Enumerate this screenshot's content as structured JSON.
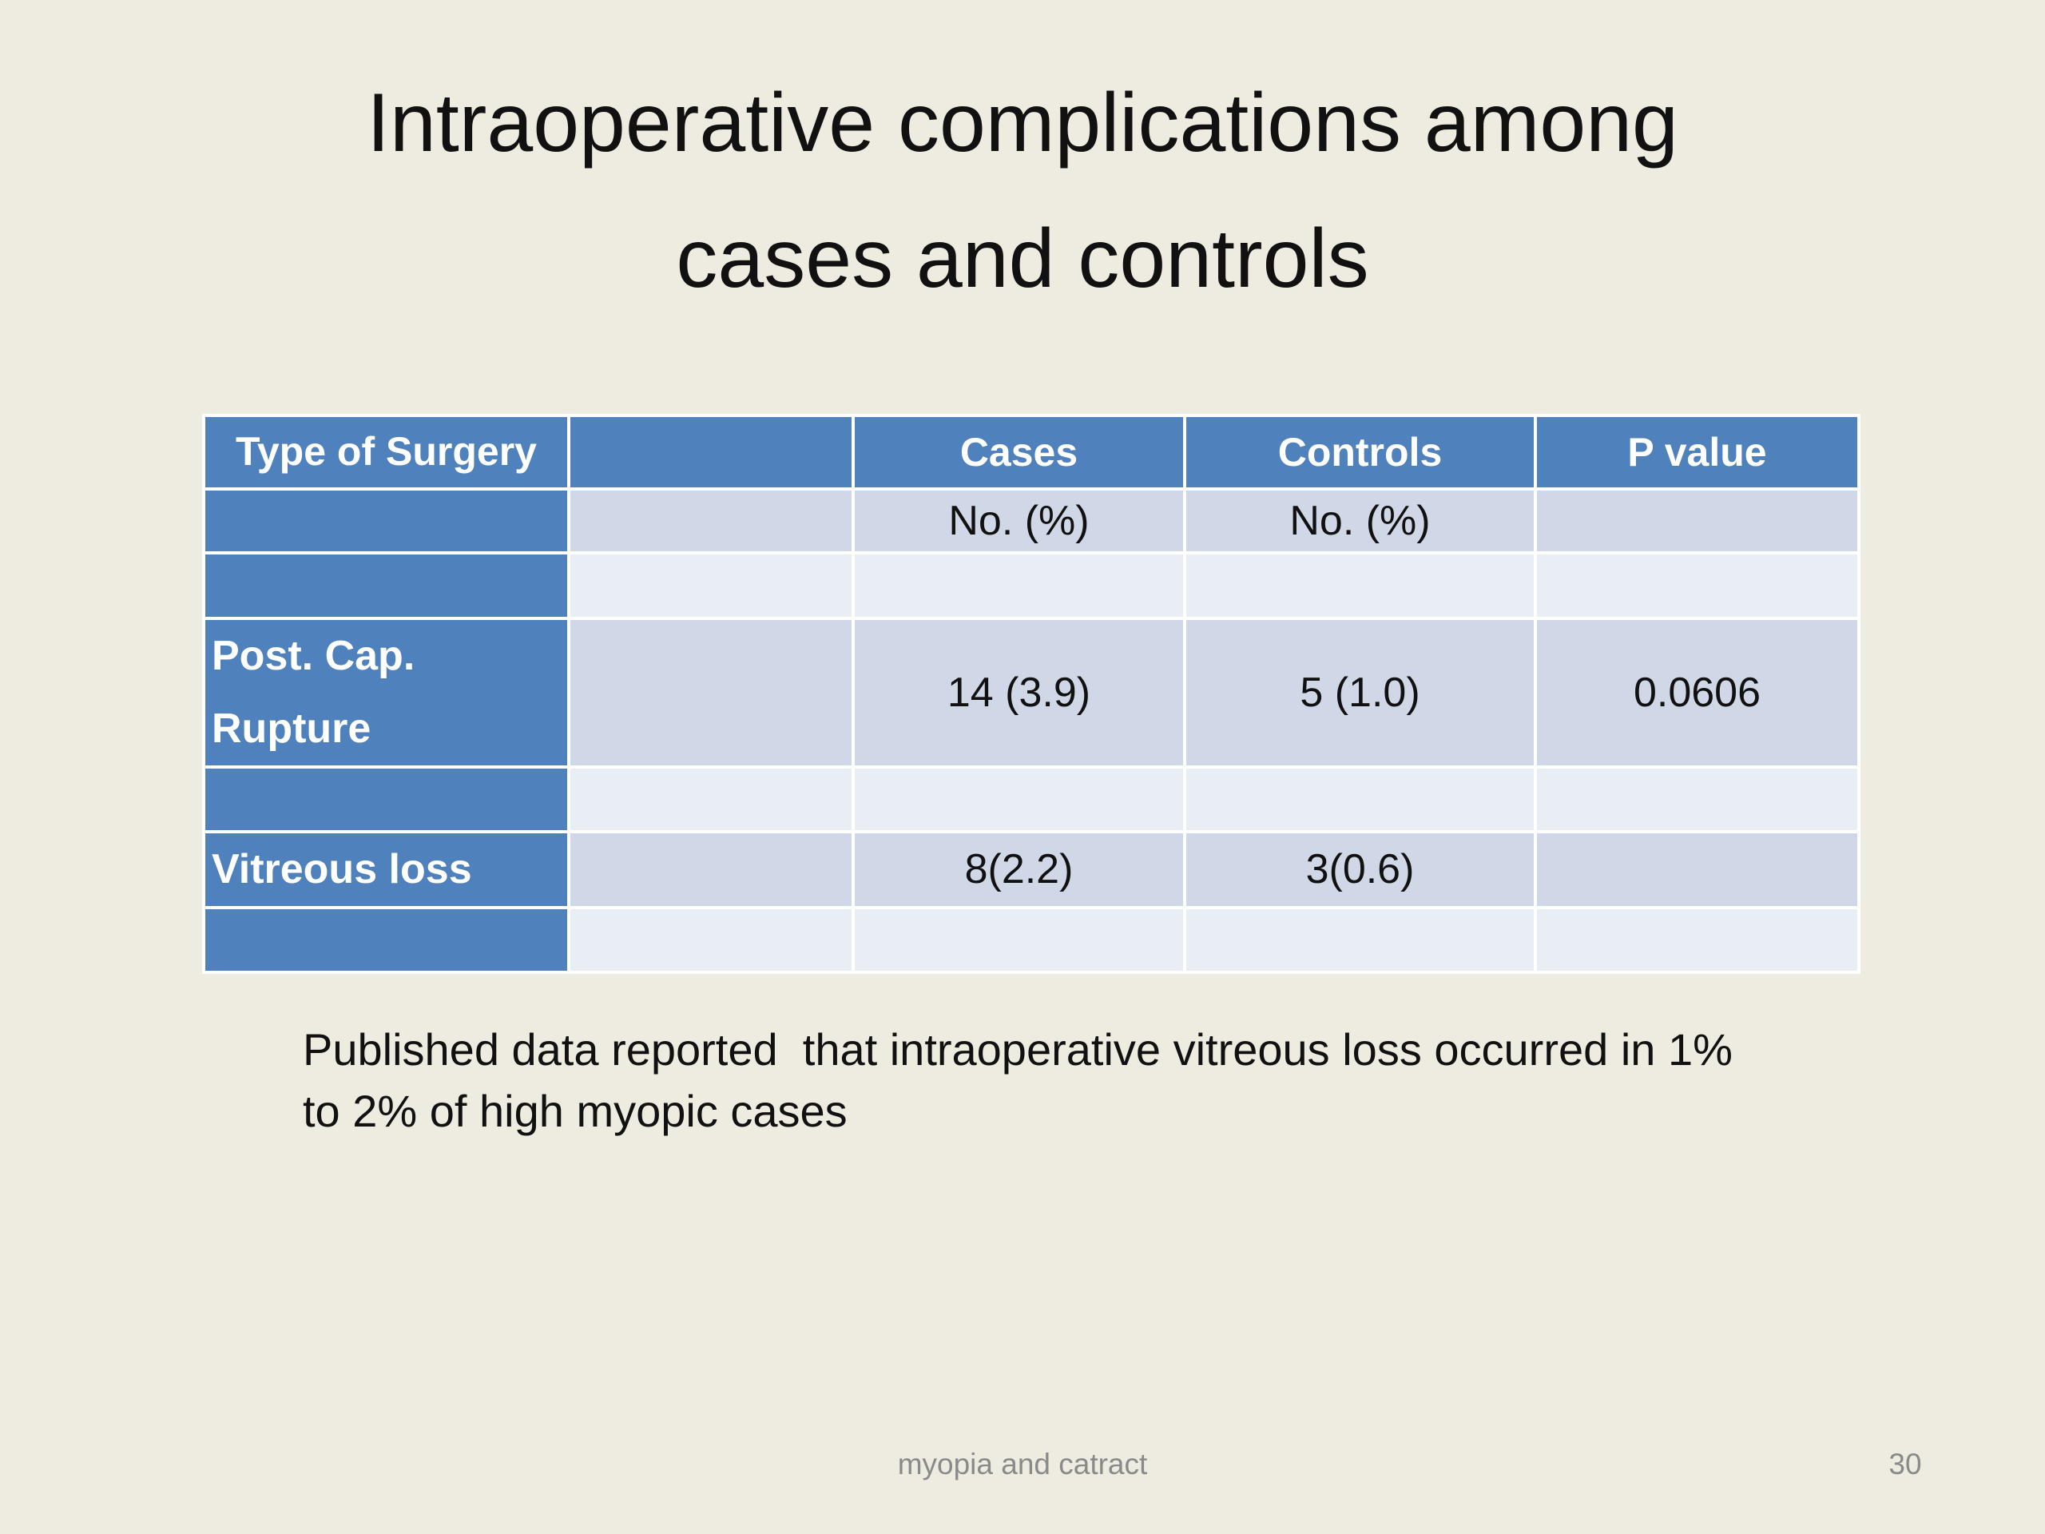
{
  "header": {
    "title_lines": [
      "Intraoperative complications among",
      "cases and controls"
    ]
  },
  "table": {
    "header": [
      "Type of Surgery",
      null,
      "Cases",
      "Controls",
      "P value"
    ],
    "rows": [
      [
        null,
        null,
        "No. (%)",
        "No. (%)",
        null
      ],
      [
        null,
        null,
        null,
        null,
        null
      ],
      [
        "Post. Cap. Rupture",
        null,
        "14 (3.9)",
        "5 (1.0)",
        "0.0606"
      ],
      [
        null,
        null,
        null,
        null,
        null
      ],
      [
        "Vitreous loss",
        null,
        "8(2.2)",
        "3(0.6)",
        null
      ],
      [
        null,
        null,
        null,
        null,
        null
      ]
    ]
  },
  "note": "Published data reported  that intraoperative vitreous loss occurred in 1%  to 2% of high myopic cases",
  "footer": {
    "text": "myopia and catract",
    "page_number": "30"
  }
}
